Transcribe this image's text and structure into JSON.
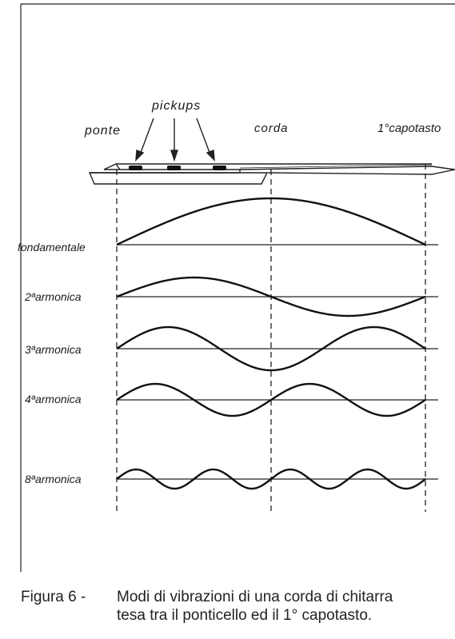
{
  "labels": {
    "pickups": "pickups",
    "ponte": "ponte",
    "corda": "corda",
    "capotasto": "1°capotasto"
  },
  "modes": [
    {
      "label": "fondamentale",
      "harmonic": 1
    },
    {
      "label": "2ªarmonica",
      "harmonic": 2
    },
    {
      "label": "3ªarmonica",
      "harmonic": 3
    },
    {
      "label": "4ªarmonica",
      "harmonic": 4
    },
    {
      "label": "8ªarmonica",
      "harmonic": 8
    }
  ],
  "caption": {
    "number": "Figura 6 -",
    "line1": "Modi di vibrazioni di una corda di chitarra",
    "line2": "tesa tra il ponticello ed il 1° capotasto."
  }
}
